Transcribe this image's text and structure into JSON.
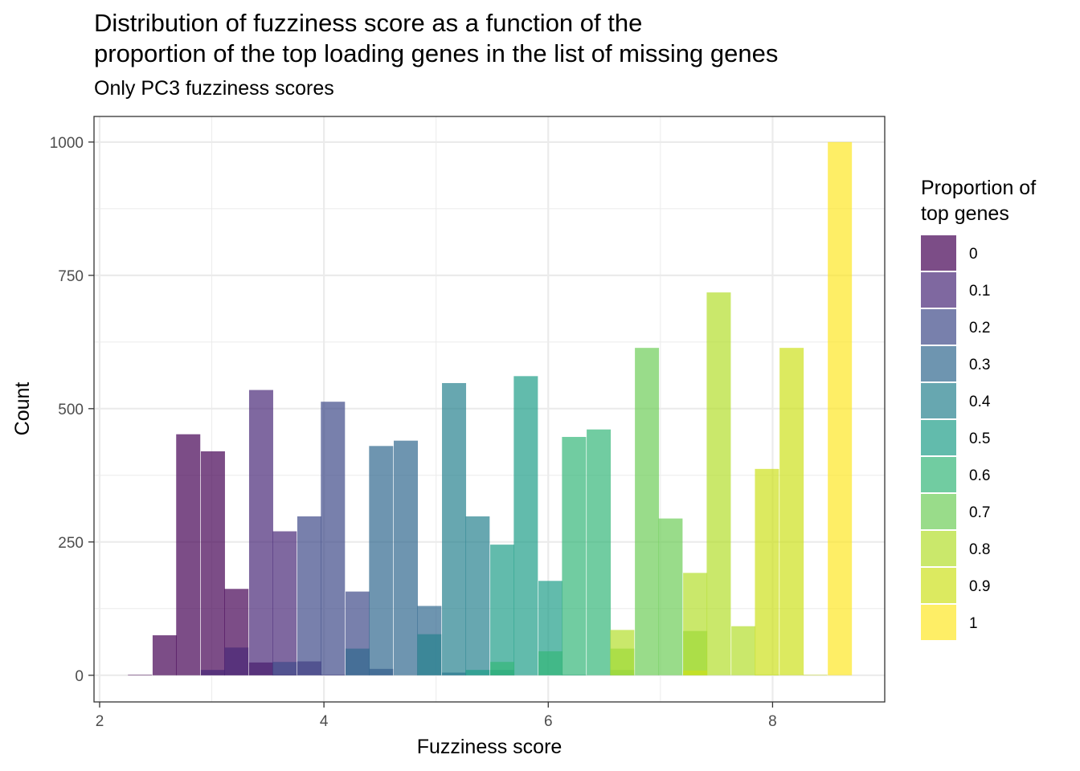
{
  "chart_data": {
    "type": "bar",
    "title": "Distribution of fuzziness score as a function of the\nproportion of the top loading genes in the list of missing genes",
    "subtitle": "Only PC3 fuzziness scores",
    "xlabel": "Fuzziness score",
    "ylabel": "Count",
    "xlim": [
      1.95,
      9.0
    ],
    "ylim": [
      -50,
      1048
    ],
    "x_ticks": [
      2,
      4,
      6,
      8
    ],
    "y_ticks": [
      0,
      250,
      500,
      750,
      1000
    ],
    "grid": true,
    "bin_width": 0.215,
    "legend": {
      "title": "Proportion of\ntop genes",
      "position": "right"
    },
    "series": [
      {
        "name": "0",
        "color": "#440154",
        "bins": [
          [
            2.36,
            1
          ],
          [
            2.58,
            75
          ],
          [
            2.79,
            452
          ],
          [
            3.01,
            420
          ],
          [
            3.22,
            162
          ],
          [
            3.44,
            24
          ],
          [
            3.65,
            1
          ]
        ]
      },
      {
        "name": "0.1",
        "color": "#482878",
        "bins": [
          [
            3.01,
            10
          ],
          [
            3.22,
            52
          ],
          [
            3.44,
            535
          ],
          [
            3.65,
            270
          ],
          [
            3.87,
            26
          ],
          [
            4.08,
            1
          ]
        ]
      },
      {
        "name": "0.2",
        "color": "#3E4A89",
        "bins": [
          [
            3.65,
            25
          ],
          [
            3.87,
            298
          ],
          [
            4.08,
            513
          ],
          [
            4.3,
            157
          ],
          [
            4.51,
            12
          ]
        ]
      },
      {
        "name": "0.3",
        "color": "#31688E",
        "bins": [
          [
            4.3,
            50
          ],
          [
            4.51,
            430
          ],
          [
            4.73,
            440
          ],
          [
            4.94,
            130
          ],
          [
            5.16,
            5
          ]
        ]
      },
      {
        "name": "0.4",
        "color": "#26828E",
        "bins": [
          [
            4.94,
            77
          ],
          [
            5.16,
            548
          ],
          [
            5.37,
            298
          ],
          [
            5.59,
            10
          ]
        ]
      },
      {
        "name": "0.5",
        "color": "#1F9E89",
        "bins": [
          [
            5.37,
            10
          ],
          [
            5.59,
            245
          ],
          [
            5.8,
            561
          ],
          [
            6.02,
            177
          ],
          [
            6.23,
            1
          ]
        ]
      },
      {
        "name": "0.6",
        "color": "#35B779",
        "bins": [
          [
            5.59,
            25
          ],
          [
            6.02,
            45
          ],
          [
            6.23,
            447
          ],
          [
            6.45,
            461
          ],
          [
            6.66,
            10
          ]
        ]
      },
      {
        "name": "0.7",
        "color": "#6DCD59",
        "bins": [
          [
            6.66,
            50
          ],
          [
            6.88,
            614
          ],
          [
            7.09,
            294
          ],
          [
            7.31,
            83
          ]
        ]
      },
      {
        "name": "0.8",
        "color": "#B4DE2C",
        "bins": [
          [
            6.66,
            85
          ],
          [
            7.31,
            192
          ],
          [
            7.52,
            718
          ],
          [
            7.74,
            92
          ],
          [
            7.95,
            1
          ]
        ]
      },
      {
        "name": "0.9",
        "color": "#CDE11D",
        "bins": [
          [
            7.31,
            9
          ],
          [
            7.95,
            387
          ],
          [
            8.17,
            614
          ],
          [
            8.38,
            1
          ]
        ]
      },
      {
        "name": "1",
        "color": "#FDE725",
        "bins": [
          [
            8.6,
            1000
          ]
        ]
      }
    ]
  }
}
